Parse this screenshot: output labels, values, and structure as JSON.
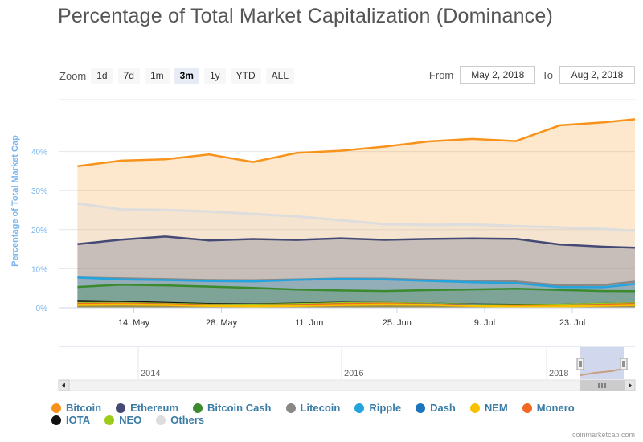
{
  "title": "Percentage of Total Market Capitalization (Dominance)",
  "zoom": {
    "label": "Zoom",
    "buttons": [
      "1d",
      "7d",
      "1m",
      "3m",
      "1y",
      "YTD",
      "ALL"
    ],
    "active": "3m"
  },
  "range": {
    "from_label": "From",
    "from_value": "May 2, 2018",
    "to_label": "To",
    "to_value": "Aug 2, 2018"
  },
  "credit": "coinmarketcap.com",
  "navigator": {
    "year_labels": [
      "2014",
      "2016",
      "2018"
    ],
    "scroll_left_icon": "arrow-left",
    "scroll_right_icon": "arrow-right",
    "grip_icon": "grip-lines"
  },
  "legend": [
    {
      "name": "Bitcoin",
      "color": "#f7931a"
    },
    {
      "name": "Ethereum",
      "color": "#454a75"
    },
    {
      "name": "Bitcoin Cash",
      "color": "#3c8a2e"
    },
    {
      "name": "Litecoin",
      "color": "#888888"
    },
    {
      "name": "Ripple",
      "color": "#23a4de"
    },
    {
      "name": "Dash",
      "color": "#1c75bc"
    },
    {
      "name": "NEM",
      "color": "#f8c100"
    },
    {
      "name": "Monero",
      "color": "#f26822"
    },
    {
      "name": "IOTA",
      "color": "#111111"
    },
    {
      "name": "NEO",
      "color": "#9ccc1a"
    },
    {
      "name": "Others",
      "color": "#dddddd"
    }
  ],
  "chart_data": {
    "type": "area",
    "title": "Percentage of Total Market Capitalization (Dominance)",
    "ylabel": "Percentage of Total Market Cap",
    "xlabel": "",
    "ylim": [
      0,
      50
    ],
    "yticks": [
      "0%",
      "10%",
      "20%",
      "30%",
      "40%"
    ],
    "xticks": [
      "14. May",
      "28. May",
      "11. Jun",
      "25. Jun",
      "9. Jul",
      "23. Jul"
    ],
    "x": [
      "2018-05-05",
      "2018-05-12",
      "2018-05-19",
      "2018-05-26",
      "2018-06-02",
      "2018-06-09",
      "2018-06-16",
      "2018-06-23",
      "2018-06-30",
      "2018-07-07",
      "2018-07-14",
      "2018-07-21",
      "2018-07-28",
      "2018-08-02"
    ],
    "grid": true,
    "legend_position": "bottom",
    "series": [
      {
        "name": "Bitcoin",
        "color": "#f7931a",
        "values": [
          36.5,
          37.5,
          37.8,
          39.5,
          37.5,
          39.5,
          40,
          41.5,
          42.5,
          43,
          42.5,
          46.5,
          47.5,
          48.5
        ]
      },
      {
        "name": "Others",
        "color": "#dddddd",
        "values": [
          26.5,
          25,
          24.8,
          24.5,
          24,
          23.5,
          22.5,
          21.5,
          21.5,
          21.5,
          21,
          20.5,
          20,
          19.5
        ]
      },
      {
        "name": "Ethereum",
        "color": "#454a75",
        "values": [
          16.5,
          17.5,
          18,
          17,
          17.5,
          17.5,
          18,
          17.5,
          17.5,
          17.5,
          17.5,
          16,
          15.5,
          15.5
        ]
      },
      {
        "name": "Litecoin",
        "color": "#888888",
        "values": [
          7.5,
          7.3,
          7.3,
          7.3,
          7.3,
          7.3,
          7.3,
          7.2,
          7,
          7,
          7,
          6,
          6,
          6.5
        ]
      },
      {
        "name": "Ripple",
        "color": "#23a4de",
        "values": [
          7.5,
          7,
          7,
          7,
          7,
          7.2,
          7.2,
          7,
          6.7,
          6.5,
          6.5,
          5.5,
          5.5,
          6
        ]
      },
      {
        "name": "Bitcoin Cash",
        "color": "#3c8a2e",
        "values": [
          5.5,
          5.8,
          5.5,
          5.2,
          5,
          4.8,
          4.7,
          4.5,
          4.5,
          4.5,
          4.7,
          4.6,
          4.5,
          4.5
        ]
      },
      {
        "name": "NEO",
        "color": "#9ccc1a",
        "values": [
          1,
          1,
          1,
          1,
          1,
          1,
          1,
          1,
          1,
          0.9,
          0.9,
          0.9,
          0.9,
          0.9
        ]
      },
      {
        "name": "NEM",
        "color": "#f8c100",
        "values": [
          0.6,
          0.6,
          0.6,
          0.6,
          0.6,
          0.6,
          0.6,
          0.6,
          0.6,
          0.5,
          0.5,
          0.5,
          0.5,
          0.5
        ]
      },
      {
        "name": "Dash",
        "color": "#1c75bc",
        "values": [
          0.8,
          0.8,
          0.8,
          0.8,
          0.8,
          0.8,
          0.8,
          0.8,
          0.8,
          0.8,
          0.8,
          0.7,
          0.7,
          0.7
        ]
      },
      {
        "name": "IOTA",
        "color": "#111111",
        "values": [
          1.5,
          1.4,
          1.3,
          1.2,
          1.1,
          1.1,
          1.1,
          1.0,
          1.0,
          1.0,
          1.0,
          0.9,
          0.9,
          0.9
        ]
      },
      {
        "name": "Monero",
        "color": "#f26822",
        "values": [
          0.8,
          0.8,
          0.8,
          0.8,
          0.8,
          0.8,
          0.8,
          0.8,
          0.7,
          0.7,
          0.7,
          0.7,
          0.7,
          0.7
        ]
      }
    ]
  }
}
